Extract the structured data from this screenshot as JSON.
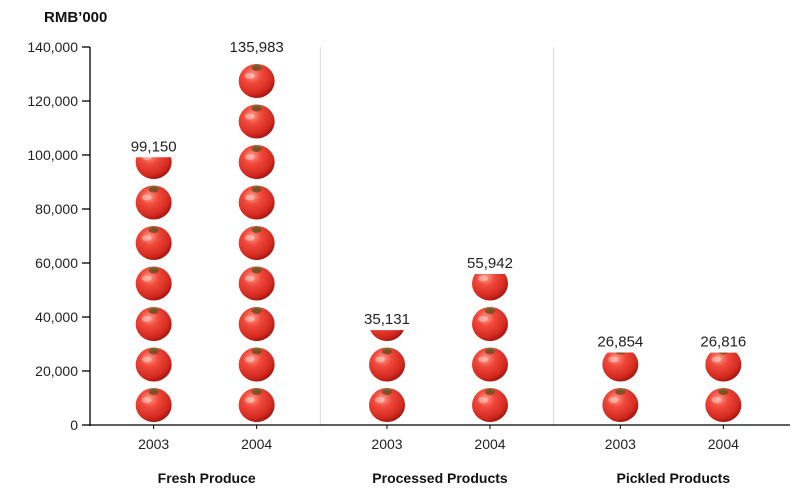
{
  "chart_data": {
    "type": "bar",
    "unit_label": "RMB’000",
    "groups": [
      "Fresh Produce",
      "Processed Products",
      "Pickled Products"
    ],
    "categories": [
      "2003",
      "2004"
    ],
    "series": [
      {
        "group": "Fresh Produce",
        "values": [
          99150,
          135983
        ],
        "labels": [
          "99,150",
          "135,983"
        ]
      },
      {
        "group": "Processed Products",
        "values": [
          35131,
          55942
        ],
        "labels": [
          "35,131",
          "55,942"
        ]
      },
      {
        "group": "Pickled Products",
        "values": [
          26854,
          26816
        ],
        "labels": [
          "26,854",
          "26,816"
        ]
      }
    ],
    "ylim": [
      0,
      140000
    ],
    "yticks": [
      0,
      20000,
      40000,
      60000,
      80000,
      100000,
      120000,
      140000
    ],
    "ytick_labels": [
      "0",
      "20,000",
      "40,000",
      "60,000",
      "80,000",
      "100,000",
      "120,000",
      "140,000"
    ],
    "value_per_marker": 15000,
    "marker": "tomato-icon",
    "colors": {
      "marker": "#e8382f",
      "marker_dark": "#b5140f",
      "divider": "#d9d9d9",
      "axis": "#000000"
    }
  }
}
